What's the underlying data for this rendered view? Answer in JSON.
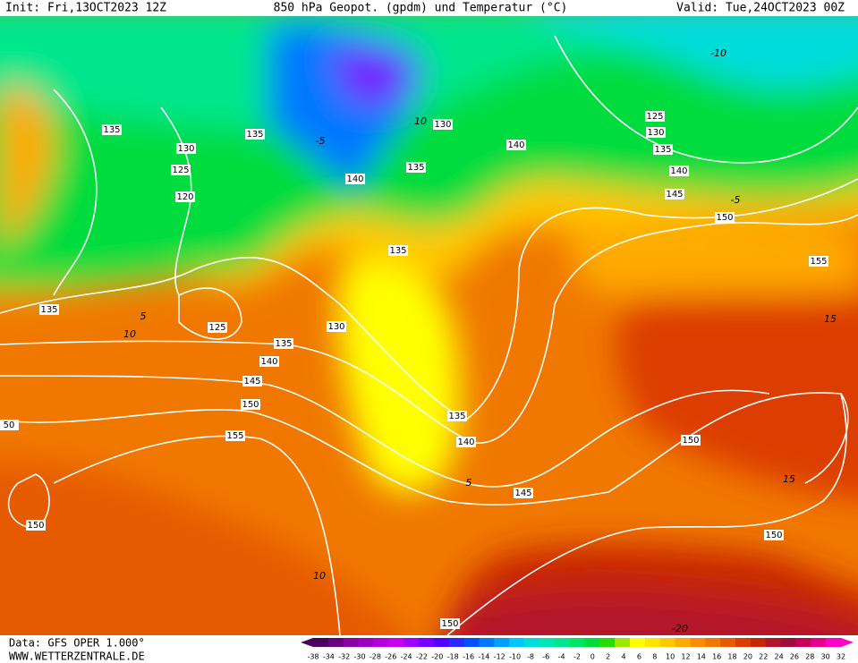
{
  "header": {
    "init": "Init: Fri,13OCT2023 12Z",
    "title": "850 hPa Geopot. (gpdm) und Temperatur (°C)",
    "valid": "Valid: Tue,24OCT2023 00Z"
  },
  "contour_labels": {
    "geopotential": [
      "135",
      "130",
      "125",
      "120",
      "135",
      "140",
      "135",
      "130",
      "140",
      "125",
      "130",
      "135",
      "140",
      "145",
      "150",
      "155",
      "135",
      "135",
      "125",
      "130",
      "135",
      "140",
      "145",
      "150",
      "155",
      "135",
      "140",
      "150",
      "145",
      "150",
      "150",
      "50",
      "150"
    ],
    "temperature": [
      "-10",
      "-5",
      "-5",
      "10",
      "5",
      "10",
      "5",
      "10",
      "15",
      "15",
      "-20"
    ]
  },
  "colorbar": {
    "labels": [
      -38,
      -34,
      -32,
      -30,
      -28,
      -26,
      -24,
      -22,
      -20,
      -18,
      -16,
      -14,
      -12,
      -10,
      -8,
      -6,
      -4,
      -2,
      0,
      2,
      4,
      6,
      8,
      10,
      12,
      14,
      16,
      18,
      20,
      22,
      24,
      26,
      28,
      30,
      32
    ],
    "colors": [
      "#4b0060",
      "#6a0080",
      "#8a00a0",
      "#a000c0",
      "#b400dc",
      "#c800f0",
      "#a000ff",
      "#7800ff",
      "#5000ff",
      "#2828ff",
      "#0050ff",
      "#0078ff",
      "#00a0ff",
      "#00c8ff",
      "#00dcdc",
      "#00e6b4",
      "#00e68c",
      "#00e664",
      "#00dc3c",
      "#28dc00",
      "#a0e600",
      "#ffff00",
      "#ffe600",
      "#ffc800",
      "#ffaa00",
      "#ff8c00",
      "#f07800",
      "#e65a00",
      "#dc3c00",
      "#c82800",
      "#b4142a",
      "#a00a3c",
      "#c8005a",
      "#e6008c",
      "#ff00c8"
    ]
  },
  "footer": {
    "data": "Data: GFS OPER 1.000°",
    "site": "WWW.WETTERZENTRALE.DE"
  }
}
